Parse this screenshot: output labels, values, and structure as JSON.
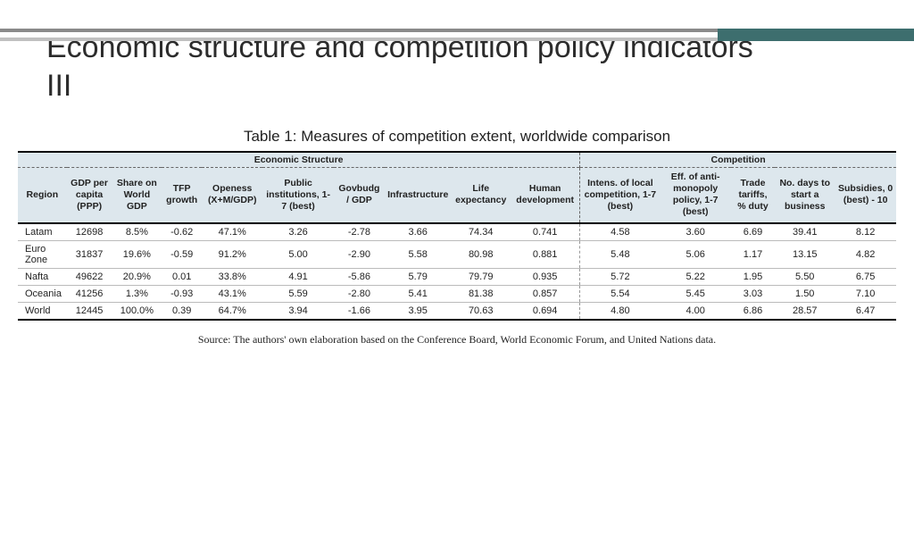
{
  "title": "Economic structure and competition policy indicators III",
  "table_caption": "Table 1: Measures of competition extent, worldwide comparison",
  "source_note": "Source: The authors' own elaboration based on the Conference Board, World Economic Forum, and United Nations data.",
  "colors": {
    "header_bg": "#dde7ed",
    "accent_teal": "#3d6e6e",
    "border_gray_top": "#8a8a8a",
    "border_gray_bottom": "#c0c0c0"
  },
  "groups": [
    {
      "label": "Economic Structure",
      "span": 10
    },
    {
      "label": "Competition",
      "span": 5
    }
  ],
  "columns": [
    "Region",
    "GDP per capita (PPP)",
    "Share on World GDP",
    "TFP growth",
    "Openess (X+M/GDP)",
    "Public institutions, 1-7 (best)",
    "Govbudg / GDP",
    "Infrastructure",
    "Life expectancy",
    "Human development",
    "Intens. of local competition, 1-7 (best)",
    "Eff. of anti-monopoly policy, 1-7 (best)",
    "Trade tariffs, % duty",
    "No. days to start a business",
    "Subsidies, 0 (best) - 10"
  ],
  "rows": [
    [
      "Latam",
      "12698",
      "8.5%",
      "-0.62",
      "47.1%",
      "3.26",
      "-2.78",
      "3.66",
      "74.34",
      "0.741",
      "4.58",
      "3.60",
      "6.69",
      "39.41",
      "8.12"
    ],
    [
      "Euro Zone",
      "31837",
      "19.6%",
      "-0.59",
      "91.2%",
      "5.00",
      "-2.90",
      "5.58",
      "80.98",
      "0.881",
      "5.48",
      "5.06",
      "1.17",
      "13.15",
      "4.82"
    ],
    [
      "Nafta",
      "49622",
      "20.9%",
      "0.01",
      "33.8%",
      "4.91",
      "-5.86",
      "5.79",
      "79.79",
      "0.935",
      "5.72",
      "5.22",
      "1.95",
      "5.50",
      "6.75"
    ],
    [
      "Oceania",
      "41256",
      "1.3%",
      "-0.93",
      "43.1%",
      "5.59",
      "-2.80",
      "5.41",
      "81.38",
      "0.857",
      "5.54",
      "5.45",
      "3.03",
      "1.50",
      "7.10"
    ],
    [
      "World",
      "12445",
      "100.0%",
      "0.39",
      "64.7%",
      "3.94",
      "-1.66",
      "3.95",
      "70.63",
      "0.694",
      "4.80",
      "4.00",
      "6.86",
      "28.57",
      "6.47"
    ]
  ],
  "structure": {
    "type": "table",
    "group_divider_after_col": 9,
    "font_size_body": 11,
    "font_size_header": 10.5
  }
}
